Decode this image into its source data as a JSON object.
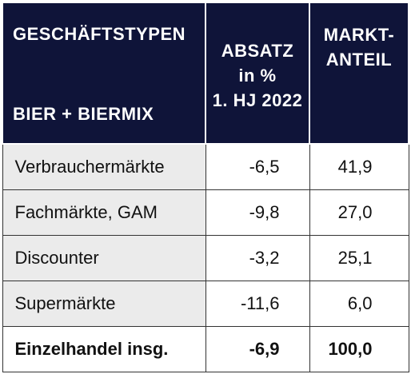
{
  "chart_data": {
    "type": "table",
    "columns": [
      {
        "lines": [
          "GESCHÄFTSTYPEN",
          "BIER + BIERMIX"
        ]
      },
      {
        "lines": [
          "ABSATZ",
          "in %",
          "1. HJ 2022"
        ]
      },
      {
        "lines": [
          "MARKT-",
          "ANTEIL"
        ]
      }
    ],
    "rows": [
      {
        "label": "Verbrauchermärkte",
        "absatz": "-6,5",
        "anteil": "41,9"
      },
      {
        "label": "Fachmärkte, GAM",
        "absatz": "-9,8",
        "anteil": "27,0"
      },
      {
        "label": "Discounter",
        "absatz": "-3,2",
        "anteil": "25,1"
      },
      {
        "label": "Supermärkte",
        "absatz": "-11,6",
        "anteil": "6,0"
      }
    ],
    "total": {
      "label": "Einzelhandel insg.",
      "absatz": "-6,9",
      "anteil": "100,0"
    }
  },
  "colors": {
    "header_bg": "#0f1439",
    "header_text": "#ffffff",
    "label_cell_bg": "#ebebeb",
    "grid": "#333333"
  }
}
